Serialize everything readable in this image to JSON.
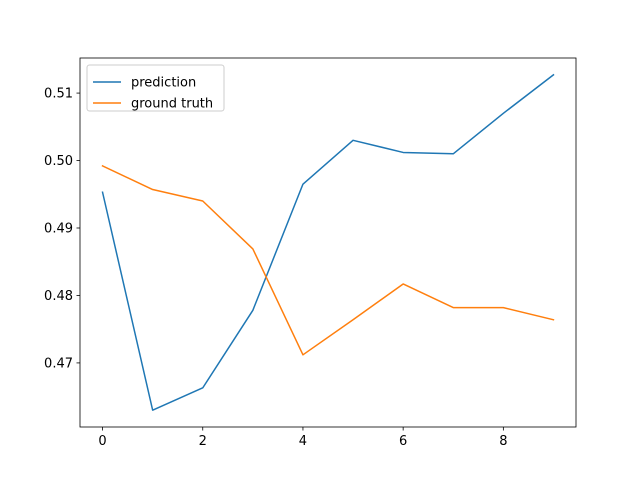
{
  "chart_data": {
    "type": "line",
    "title": "",
    "xlabel": "",
    "ylabel": "",
    "xlim": [
      -0.45,
      9.45
    ],
    "ylim": [
      0.4605,
      0.5152
    ],
    "xticks": [
      0,
      2,
      4,
      6,
      8
    ],
    "yticks": [
      0.47,
      0.48,
      0.49,
      0.5,
      0.51
    ],
    "xtick_labels": [
      "0",
      "2",
      "4",
      "6",
      "8"
    ],
    "ytick_labels": [
      "0.47",
      "0.48",
      "0.49",
      "0.50",
      "0.51"
    ],
    "grid": false,
    "legend": {
      "placement": "top-left",
      "entries": [
        "prediction",
        "ground truth"
      ]
    },
    "x": [
      0,
      1,
      2,
      3,
      4,
      5,
      6,
      7,
      8,
      9
    ],
    "series": [
      {
        "name": "prediction",
        "color": "#1f77b4",
        "values": [
          0.4953,
          0.463,
          0.4663,
          0.4778,
          0.4965,
          0.503,
          0.5012,
          0.501,
          0.507,
          0.5127
        ]
      },
      {
        "name": "ground truth",
        "color": "#ff7f0e",
        "values": [
          0.4992,
          0.4957,
          0.494,
          0.4869,
          0.4712,
          0.4764,
          0.4817,
          0.4782,
          0.4782,
          0.4764
        ]
      }
    ]
  }
}
